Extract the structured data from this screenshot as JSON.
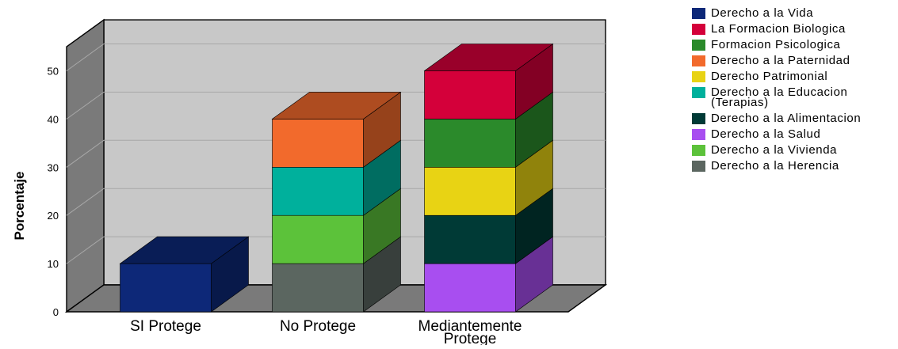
{
  "chart_data": {
    "type": "bar",
    "stacked": true,
    "three_d": true,
    "title": "",
    "xlabel": "",
    "ylabel": "Porcentaje",
    "ylim": [
      0,
      55
    ],
    "yticks": [
      0,
      10,
      20,
      30,
      40,
      50
    ],
    "grid": true,
    "legend_position": "top-right",
    "categories": [
      "SI Protege",
      "No Protege",
      "Mediantemente\nProtege"
    ],
    "series": [
      {
        "name": "Derecho a la Vida",
        "color": "#0d2878",
        "values": [
          10,
          0,
          0
        ]
      },
      {
        "name": "La Formacion Biologica",
        "color": "#d4003a",
        "values": [
          0,
          0,
          10
        ]
      },
      {
        "name": "Formacion Psicologica",
        "color": "#2b8a2b",
        "values": [
          0,
          0,
          10
        ]
      },
      {
        "name": "Derecho a la Paternidad",
        "color": "#f26a2c",
        "values": [
          0,
          10,
          0
        ]
      },
      {
        "name": "Derecho Patrimonial",
        "color": "#e8d314",
        "values": [
          0,
          0,
          10
        ]
      },
      {
        "name": "Derecho a la Educacion\n(Terapias)",
        "color": "#00b09c",
        "values": [
          0,
          10,
          0
        ]
      },
      {
        "name": "Derecho a la Alimentacion",
        "color": "#003a36",
        "values": [
          0,
          0,
          10
        ]
      },
      {
        "name": "Derecho a la Salud",
        "color": "#a84ef0",
        "values": [
          0,
          0,
          10
        ]
      },
      {
        "name": "Derecho a la Vivienda",
        "color": "#5cc23a",
        "values": [
          0,
          10,
          0
        ]
      },
      {
        "name": "Derecho a la Herencia",
        "color": "#5b6660",
        "values": [
          0,
          10,
          0
        ]
      }
    ],
    "stack_order_bottom_to_top": [
      [
        "Derecho a la Vida"
      ],
      [
        "Derecho a la Herencia",
        "Derecho a la Vivienda",
        "Derecho a la Educacion\n(Terapias)",
        "Derecho a la Paternidad"
      ],
      [
        "Derecho a la Salud",
        "Derecho a la Alimentacion",
        "Derecho Patrimonial",
        "Formacion Psicologica",
        "La Formacion Biologica"
      ]
    ]
  }
}
